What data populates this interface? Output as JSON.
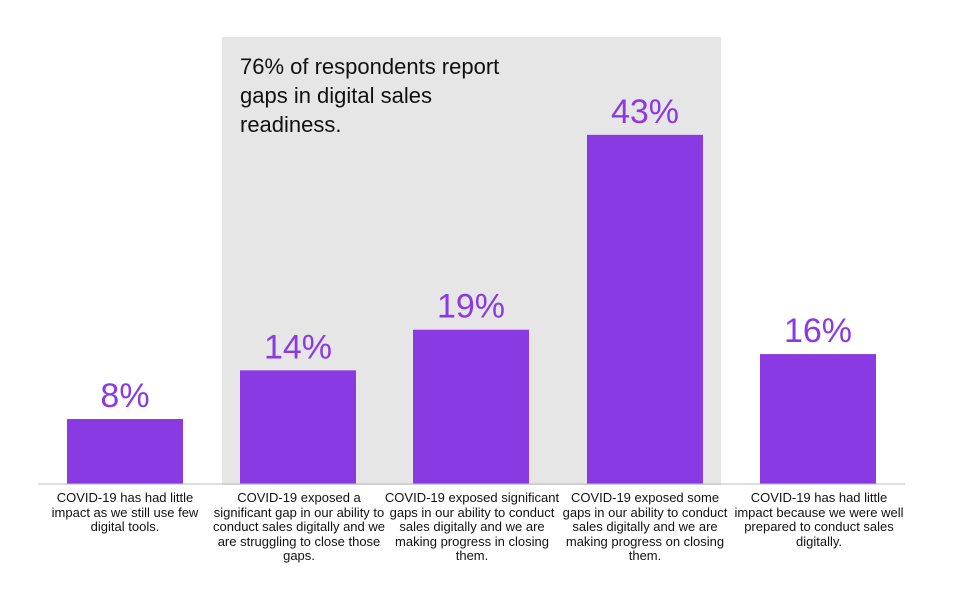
{
  "chart_data": {
    "type": "bar",
    "title": "",
    "xlabel": "",
    "ylabel": "",
    "ylim": [
      0,
      50
    ],
    "grid": false,
    "value_suffix": "%",
    "categories": [
      "COVID-19 has had little impact as we still use few digital tools.",
      "COVID-19 exposed a significant gap in our ability to conduct sales digitally and we are struggling to close those gaps.",
      "COVID-19 exposed significant gaps in our ability to conduct sales digitally and we are making progress in closing them.",
      "COVID-19 exposed some gaps in our ability to conduct sales digitally and we are making progress on closing them.",
      "COVID-19 has had little impact because we were well prepared to conduct sales digitally."
    ],
    "values": [
      8,
      14,
      19,
      43,
      16
    ],
    "highlight": {
      "categories": [
        1,
        2,
        3
      ],
      "text": "76% of respondents report gaps in digital sales readiness."
    },
    "colors": {
      "bar": "#8a3ae2",
      "value_label": "#8a3ae2",
      "highlight_band": "#e6e6e6",
      "baseline": "#bbbbbb",
      "text": "#111111"
    }
  }
}
